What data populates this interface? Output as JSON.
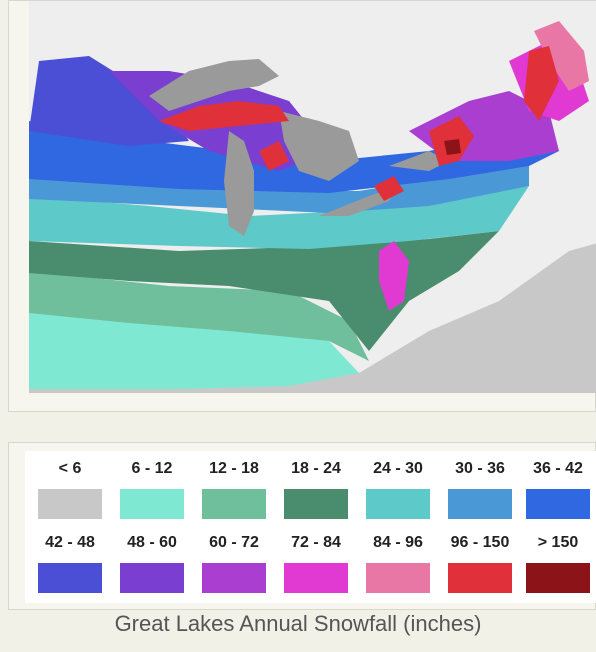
{
  "caption": "Great Lakes Annual Snowfall (inches)",
  "colors": {
    "lake": "#9a9a9a",
    "land_none": "#c8c8c8",
    "water_bg": "#eeeeee"
  },
  "legend": [
    {
      "label": "< 6",
      "color": "#c8c8c8"
    },
    {
      "label": "6 - 12",
      "color": "#7fe8d3"
    },
    {
      "label": "12 - 18",
      "color": "#6fbf9c"
    },
    {
      "label": "18 - 24",
      "color": "#4a8c6e"
    },
    {
      "label": "24 - 30",
      "color": "#5ec9c9"
    },
    {
      "label": "30 - 36",
      "color": "#4a98d6"
    },
    {
      "label": "36 - 42",
      "color": "#2f68e0"
    },
    {
      "label": "42 - 48",
      "color": "#4a4fd6"
    },
    {
      "label": "48 - 60",
      "color": "#7a3fd0"
    },
    {
      "label": "60 - 72",
      "color": "#a93ed0"
    },
    {
      "label": "72 - 84",
      "color": "#e03ad2"
    },
    {
      "label": "84 - 96",
      "color": "#e877a6"
    },
    {
      "label": "96 - 150",
      "color": "#e0303a"
    },
    {
      "label": "> 150",
      "color": "#8c1418"
    }
  ]
}
